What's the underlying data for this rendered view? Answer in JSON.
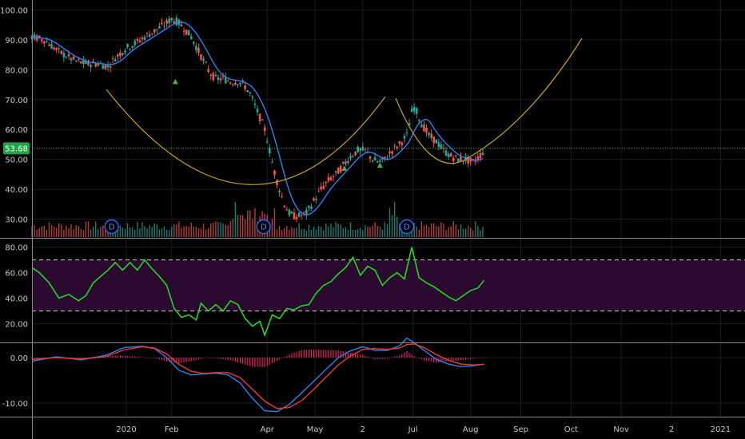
{
  "colors": {
    "background": "#000000",
    "grid": "#1c1c1c",
    "divider": "#8a8a8a",
    "tick_text": "#c8c8c8",
    "candle_up": "#26a69a",
    "candle_down": "#ef5350",
    "ma_line": "#2f80ed",
    "arc": "#c8a020",
    "price_line": "#22c55e",
    "price_label_bg": "#22a34a",
    "triangle": "#4caf50",
    "dividend": "#2962ff",
    "rsi_line": "#22e022",
    "rsi_band": "#2a0a2e",
    "rsi_dash": "#cccccc",
    "macd_line": "#2f80ed",
    "signal_line": "#ef3b2c",
    "hist": "#e91e63"
  },
  "chart_data": [
    {
      "type": "candlestick",
      "panel": "price",
      "title": "",
      "last_price_label": "53.68",
      "last_price": 53.68,
      "y_ticks": [
        "100.00",
        "90.00",
        "80.00",
        "70.00",
        "60.00",
        "50.00",
        "40.00",
        "30.00"
      ],
      "ylim": [
        24,
        102
      ],
      "close_path": [
        [
          0,
          91
        ],
        [
          10,
          90
        ],
        [
          22,
          86
        ],
        [
          35,
          83
        ],
        [
          45,
          82
        ],
        [
          55,
          82
        ],
        [
          62,
          81
        ],
        [
          68,
          84
        ],
        [
          76,
          87
        ],
        [
          85,
          89
        ],
        [
          92,
          91
        ],
        [
          100,
          93
        ],
        [
          108,
          95
        ],
        [
          114,
          97
        ],
        [
          119,
          96
        ],
        [
          124,
          94
        ],
        [
          130,
          91
        ],
        [
          135,
          87
        ],
        [
          140,
          83
        ],
        [
          145,
          79
        ],
        [
          150,
          77
        ],
        [
          156,
          77
        ],
        [
          162,
          76
        ],
        [
          168,
          76
        ],
        [
          173,
          75
        ],
        [
          178,
          72
        ],
        [
          182,
          68
        ],
        [
          186,
          64
        ],
        [
          190,
          60
        ],
        [
          193,
          55
        ],
        [
          196,
          49
        ],
        [
          199,
          44
        ],
        [
          202,
          40
        ],
        [
          206,
          35
        ],
        [
          210,
          32
        ],
        [
          214,
          31
        ],
        [
          218,
          31
        ],
        [
          224,
          32
        ],
        [
          230,
          36
        ],
        [
          236,
          40
        ],
        [
          242,
          43
        ],
        [
          248,
          45
        ],
        [
          254,
          48
        ],
        [
          260,
          51
        ],
        [
          266,
          53
        ],
        [
          272,
          53
        ],
        [
          278,
          50
        ],
        [
          283,
          49
        ],
        [
          288,
          50
        ],
        [
          294,
          53
        ],
        [
          300,
          55
        ],
        [
          306,
          58
        ],
        [
          311,
          68
        ],
        [
          314,
          66
        ],
        [
          318,
          62
        ],
        [
          324,
          58
        ],
        [
          330,
          56
        ],
        [
          336,
          53
        ],
        [
          342,
          51
        ],
        [
          348,
          50
        ],
        [
          354,
          50
        ],
        [
          360,
          49
        ],
        [
          365,
          51
        ],
        [
          369,
          53
        ]
      ],
      "overlays": [
        "moving-average",
        "cup-arc-1",
        "cup-arc-2",
        "cup-arc-3-projection"
      ],
      "dividend_markers": [
        {
          "label": "D",
          "bar": 65
        },
        {
          "label": "D",
          "bar": 189
        },
        {
          "label": "D",
          "bar": 306
        }
      ],
      "triangle_markers": [
        {
          "bar": 117,
          "value": 76
        },
        {
          "bar": 255,
          "value": 47
        },
        {
          "bar": 284,
          "value": 48
        }
      ]
    },
    {
      "type": "line",
      "panel": "rsi",
      "title": "",
      "y_ticks": [
        "80.00",
        "60.00",
        "40.00",
        "20.00"
      ],
      "ylim": [
        6,
        86
      ],
      "upper_band": 70,
      "lower_band": 30,
      "series": [
        {
          "name": "",
          "points": [
            [
              0,
              64
            ],
            [
              6,
              60
            ],
            [
              14,
              52
            ],
            [
              22,
              40
            ],
            [
              30,
              43
            ],
            [
              38,
              38
            ],
            [
              44,
              42
            ],
            [
              50,
              52
            ],
            [
              56,
              57
            ],
            [
              62,
              62
            ],
            [
              68,
              68
            ],
            [
              74,
              62
            ],
            [
              80,
              68
            ],
            [
              86,
              62
            ],
            [
              92,
              70
            ],
            [
              98,
              63
            ],
            [
              104,
              57
            ],
            [
              110,
              50
            ],
            [
              116,
              32
            ],
            [
              122,
              25
            ],
            [
              128,
              27
            ],
            [
              134,
              23
            ],
            [
              138,
              36
            ],
            [
              144,
              30
            ],
            [
              150,
              35
            ],
            [
              156,
              30
            ],
            [
              162,
              38
            ],
            [
              168,
              35
            ],
            [
              174,
              24
            ],
            [
              180,
              18
            ],
            [
              186,
              22
            ],
            [
              190,
              11
            ],
            [
              196,
              27
            ],
            [
              202,
              24
            ],
            [
              208,
              32
            ],
            [
              214,
              31
            ],
            [
              220,
              34
            ],
            [
              226,
              35
            ],
            [
              232,
              44
            ],
            [
              238,
              50
            ],
            [
              244,
              53
            ],
            [
              250,
              59
            ],
            [
              256,
              64
            ],
            [
              262,
              72
            ],
            [
              268,
              58
            ],
            [
              274,
              65
            ],
            [
              280,
              62
            ],
            [
              286,
              50
            ],
            [
              292,
              56
            ],
            [
              298,
              60
            ],
            [
              304,
              55
            ],
            [
              310,
              80
            ],
            [
              316,
              56
            ],
            [
              322,
              52
            ],
            [
              328,
              49
            ],
            [
              334,
              45
            ],
            [
              340,
              41
            ],
            [
              346,
              38
            ],
            [
              352,
              42
            ],
            [
              358,
              46
            ],
            [
              364,
              48
            ],
            [
              369,
              54
            ]
          ]
        }
      ]
    },
    {
      "type": "line",
      "panel": "macd",
      "title": "",
      "y_ticks": [
        "0.00",
        "-10.00"
      ],
      "ylim": [
        -13,
        3
      ],
      "series": [
        {
          "name": "",
          "points": [
            [
              0,
              -0.8
            ],
            [
              20,
              0.2
            ],
            [
              40,
              -0.5
            ],
            [
              60,
              0.5
            ],
            [
              75,
              2.2
            ],
            [
              90,
              2.5
            ],
            [
              100,
              2
            ],
            [
              110,
              0
            ],
            [
              120,
              -2.8
            ],
            [
              130,
              -3.8
            ],
            [
              140,
              -3.6
            ],
            [
              150,
              -3.4
            ],
            [
              160,
              -3.8
            ],
            [
              170,
              -5.6
            ],
            [
              180,
              -9
            ],
            [
              190,
              -11.7
            ],
            [
              200,
              -11.9
            ],
            [
              210,
              -10.3
            ],
            [
              220,
              -7.8
            ],
            [
              230,
              -5.2
            ],
            [
              240,
              -2.6
            ],
            [
              250,
              0
            ],
            [
              260,
              1.5
            ],
            [
              270,
              2.4
            ],
            [
              280,
              1.6
            ],
            [
              290,
              1.6
            ],
            [
              300,
              2.6
            ],
            [
              306,
              4.3
            ],
            [
              312,
              3.3
            ],
            [
              320,
              1.6
            ],
            [
              330,
              -0.4
            ],
            [
              340,
              -1.4
            ],
            [
              350,
              -2
            ],
            [
              360,
              -1.8
            ],
            [
              369,
              -1.4
            ]
          ]
        },
        {
          "name": "",
          "points": [
            [
              0,
              -0.4
            ],
            [
              20,
              0
            ],
            [
              40,
              -0.3
            ],
            [
              60,
              0.2
            ],
            [
              75,
              1.7
            ],
            [
              90,
              2.4
            ],
            [
              100,
              2.1
            ],
            [
              110,
              0.8
            ],
            [
              120,
              -1.5
            ],
            [
              130,
              -3
            ],
            [
              140,
              -3.5
            ],
            [
              150,
              -3.3
            ],
            [
              160,
              -3.3
            ],
            [
              170,
              -4.4
            ],
            [
              180,
              -7
            ],
            [
              190,
              -9.6
            ],
            [
              200,
              -11.2
            ],
            [
              210,
              -11
            ],
            [
              220,
              -9.5
            ],
            [
              230,
              -7
            ],
            [
              240,
              -4.3
            ],
            [
              250,
              -1.6
            ],
            [
              260,
              0.4
            ],
            [
              270,
              1.8
            ],
            [
              280,
              2
            ],
            [
              290,
              1.8
            ],
            [
              300,
              2.1
            ],
            [
              306,
              2.9
            ],
            [
              312,
              3
            ],
            [
              320,
              2.2
            ],
            [
              330,
              0.7
            ],
            [
              340,
              -0.6
            ],
            [
              350,
              -1.4
            ],
            [
              360,
              -1.6
            ],
            [
              369,
              -1.5
            ]
          ]
        }
      ],
      "histogram": [
        [
          0,
          -0.4
        ],
        [
          10,
          -0.3
        ],
        [
          20,
          0.2
        ],
        [
          30,
          0
        ],
        [
          40,
          -0.2
        ],
        [
          50,
          0.2
        ],
        [
          60,
          0.3
        ],
        [
          70,
          0.5
        ],
        [
          80,
          0.3
        ],
        [
          90,
          0.1
        ],
        [
          100,
          -0.1
        ],
        [
          110,
          -0.8
        ],
        [
          120,
          -1.3
        ],
        [
          130,
          -0.8
        ],
        [
          140,
          -0.1
        ],
        [
          150,
          -0.1
        ],
        [
          160,
          -0.5
        ],
        [
          170,
          -1.2
        ],
        [
          180,
          -2
        ],
        [
          190,
          -2.1
        ],
        [
          200,
          -0.7
        ],
        [
          210,
          0.7
        ],
        [
          220,
          1.7
        ],
        [
          230,
          1.8
        ],
        [
          240,
          1.7
        ],
        [
          250,
          1.6
        ],
        [
          260,
          1.1
        ],
        [
          270,
          0.6
        ],
        [
          280,
          -0.4
        ],
        [
          290,
          -0.2
        ],
        [
          300,
          0.5
        ],
        [
          306,
          1.4
        ],
        [
          312,
          0.3
        ],
        [
          320,
          -0.6
        ],
        [
          330,
          -1.1
        ],
        [
          340,
          -0.8
        ],
        [
          350,
          -0.6
        ],
        [
          360,
          -0.2
        ],
        [
          369,
          0.1
        ]
      ]
    }
  ],
  "x_axis": {
    "max_bar": 582,
    "ticks": [
      {
        "label": "2020",
        "bar": 77
      },
      {
        "label": "Feb",
        "bar": 114
      },
      {
        "label": "Apr",
        "bar": 192
      },
      {
        "label": "May",
        "bar": 231
      },
      {
        "label": "2",
        "bar": 270
      },
      {
        "label": "Jul",
        "bar": 311
      },
      {
        "label": "Aug",
        "bar": 358
      },
      {
        "label": "Sep",
        "bar": 399
      },
      {
        "label": "Oct",
        "bar": 440
      },
      {
        "label": "Nov",
        "bar": 481
      },
      {
        "label": "2",
        "bar": 522
      },
      {
        "label": "2021",
        "bar": 562
      }
    ]
  }
}
